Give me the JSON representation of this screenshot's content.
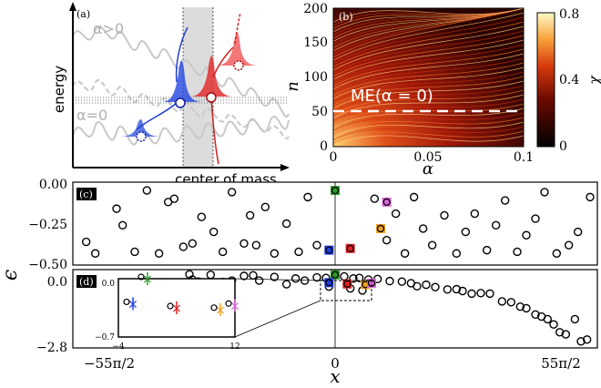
{
  "panel_a": {
    "tag": "(a)",
    "ylabel": "energy",
    "xlabel": "center of mass",
    "label_alpha_pos": "α>0",
    "label_alpha_zero": "α=0"
  },
  "panel_b": {
    "tag": "(b)",
    "annotation": "ME(α = 0)",
    "ylabel": "n",
    "xlabel": "α",
    "yticks": [
      "0",
      "50",
      "100",
      "150",
      "200"
    ],
    "xticks": [
      "0",
      "0.05",
      "0.1"
    ],
    "colorbar_ticks": [
      "0",
      "0.4",
      "0.8"
    ],
    "colorbar_label": "χ",
    "colors": {
      "low": "#000000",
      "mid": "#c0260a",
      "high": "#fff9b0"
    }
  },
  "panel_c": {
    "tag": "(c)",
    "yticks": [
      "0.00",
      "−0.25",
      "−0.50"
    ]
  },
  "panel_d": {
    "tag": "(d)",
    "yticks": [
      "0.0",
      "−2.8"
    ],
    "inset_yticks": [
      "0.0",
      "−0.7"
    ],
    "inset_xticks": [
      "−4",
      "12"
    ]
  },
  "shared": {
    "ylabel": "ϵ",
    "xlabel": "x",
    "xticks": [
      "−55π/2",
      "0",
      "55π/2"
    ]
  },
  "chart_data": [
    {
      "type": "scatter",
      "name": "panel-c",
      "xlim": [
        -86.4,
        86.4
      ],
      "ylim": [
        -0.5,
        0.0
      ],
      "points_black": [
        [
          -82,
          -0.36
        ],
        [
          -79,
          -0.43
        ],
        [
          -72,
          -0.16
        ],
        [
          -70,
          -0.26
        ],
        [
          -66,
          -0.42
        ],
        [
          -62,
          -0.05
        ],
        [
          -58,
          -0.43
        ],
        [
          -55,
          -0.12
        ],
        [
          -53,
          -0.1
        ],
        [
          -50,
          -0.39
        ],
        [
          -47,
          -0.37
        ],
        [
          -44,
          -0.21
        ],
        [
          -40,
          -0.3
        ],
        [
          -37,
          -0.42
        ],
        [
          -34,
          -0.06
        ],
        [
          -30,
          -0.37
        ],
        [
          -28,
          -0.2
        ],
        [
          -26,
          -0.38
        ],
        [
          -23,
          -0.15
        ],
        [
          -20,
          -0.43
        ],
        [
          -16,
          -0.25
        ],
        [
          -12,
          -0.42
        ],
        [
          -9,
          -0.09
        ],
        [
          -6,
          -0.38
        ],
        [
          13,
          -0.1
        ],
        [
          17,
          -0.35
        ],
        [
          20,
          -0.19
        ],
        [
          23,
          -0.43
        ],
        [
          26,
          -0.09
        ],
        [
          29,
          -0.28
        ],
        [
          32,
          -0.38
        ],
        [
          36,
          -0.2
        ],
        [
          40,
          -0.43
        ],
        [
          43,
          -0.3
        ],
        [
          46,
          -0.19
        ],
        [
          50,
          -0.41
        ],
        [
          53,
          -0.26
        ],
        [
          56,
          -0.11
        ],
        [
          60,
          -0.42
        ],
        [
          63,
          -0.32
        ],
        [
          66,
          -0.22
        ],
        [
          69,
          -0.06
        ],
        [
          73,
          -0.43
        ],
        [
          77,
          -0.38
        ],
        [
          80,
          -0.3
        ],
        [
          84,
          -0.09
        ]
      ],
      "points_colored": [
        {
          "x": 0,
          "y": -0.05,
          "color": "#2a9a2a"
        },
        {
          "x": -2,
          "y": -0.41,
          "color": "#1f3ee0"
        },
        {
          "x": 5,
          "y": -0.4,
          "color": "#e02020"
        },
        {
          "x": 15,
          "y": -0.28,
          "color": "#f0a020"
        },
        {
          "x": 17,
          "y": -0.12,
          "color": "#dd66dd"
        }
      ]
    },
    {
      "type": "scatter",
      "name": "panel-d",
      "xlim": [
        -86.4,
        86.4
      ],
      "ylim": [
        -2.8,
        0.2
      ],
      "points_black": [
        [
          -48,
          0.02
        ],
        [
          -47,
          -0.18
        ],
        [
          -45,
          -0.26
        ],
        [
          -41,
          0.0
        ],
        [
          -37,
          -0.28
        ],
        [
          -34,
          -0.22
        ],
        [
          -30,
          -0.04
        ],
        [
          -27,
          -0.02
        ],
        [
          -25,
          -0.22
        ],
        [
          -20,
          -0.08
        ],
        [
          -16,
          -0.36
        ],
        [
          -13,
          -0.14
        ],
        [
          -10,
          -0.22
        ],
        [
          -6,
          -0.1
        ],
        [
          -3,
          -0.12
        ],
        [
          3,
          -0.06
        ],
        [
          6,
          -0.14
        ],
        [
          8,
          -0.12
        ],
        [
          11,
          -0.18
        ],
        [
          14,
          -0.16
        ],
        [
          18,
          -0.24
        ],
        [
          22,
          -0.26
        ],
        [
          25,
          -0.32
        ],
        [
          27,
          -0.44
        ],
        [
          30,
          -0.38
        ],
        [
          33,
          -0.47
        ],
        [
          37,
          -0.56
        ],
        [
          40,
          -0.55
        ],
        [
          42,
          -0.62
        ],
        [
          45,
          -0.72
        ],
        [
          48,
          -0.7
        ],
        [
          51,
          -0.72
        ],
        [
          55,
          -1.02
        ],
        [
          58,
          -1.05
        ],
        [
          61,
          -1.22
        ],
        [
          63,
          -1.28
        ],
        [
          66,
          -1.52
        ],
        [
          68,
          -1.6
        ],
        [
          70,
          -1.7
        ],
        [
          72,
          -1.9
        ],
        [
          74,
          -2.2
        ],
        [
          76,
          -2.28
        ],
        [
          79,
          -1.7
        ],
        [
          81,
          -2.55
        ],
        [
          83,
          -2.48
        ],
        [
          -2,
          -0.45
        ],
        [
          5,
          -0.52
        ],
        [
          9,
          -0.6
        ]
      ],
      "points_colored": [
        {
          "x": 0,
          "y": 0.0,
          "color": "#2a9a2a"
        },
        {
          "x": -2,
          "y": -0.3,
          "color": "#1f3ee0"
        },
        {
          "x": 4,
          "y": -0.35,
          "color": "#e02020"
        },
        {
          "x": 10,
          "y": -0.37,
          "color": "#f0a020"
        },
        {
          "x": 12,
          "y": -0.32,
          "color": "#dd66dd"
        }
      ]
    }
  ]
}
